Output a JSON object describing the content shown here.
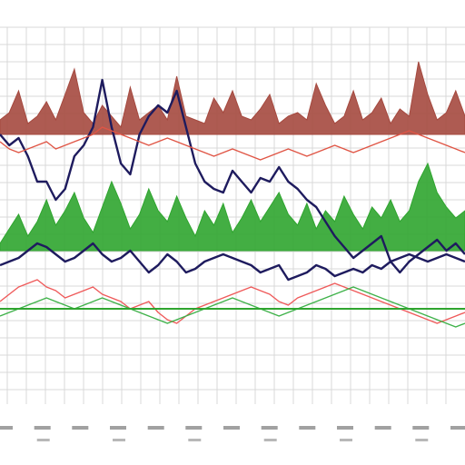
{
  "chart_data": {
    "type": "area",
    "title": "",
    "xlabel": "",
    "ylabel": "",
    "grid": true,
    "legend": "none",
    "x_tick_labels_legible": false,
    "x": [
      0,
      1,
      2,
      3,
      4,
      5,
      6,
      7,
      8,
      9,
      10,
      11,
      12,
      13,
      14,
      15,
      16,
      17,
      18,
      19,
      20,
      21,
      22,
      23,
      24,
      25,
      26,
      27,
      28,
      29,
      30,
      31,
      32,
      33,
      34,
      35,
      36,
      37,
      38,
      39,
      40,
      41,
      42,
      43,
      44,
      45,
      46,
      47,
      48,
      49,
      50
    ],
    "ylim": [
      0,
      100
    ],
    "series": [
      {
        "kind": "area",
        "color": "#a5493f",
        "values": [
          72,
          74,
          80,
          71,
          73,
          77,
          72,
          79,
          86,
          74,
          71,
          76,
          73,
          70,
          81,
          72,
          74,
          76,
          72,
          84,
          73,
          72,
          71,
          78,
          74,
          80,
          73,
          72,
          75,
          79,
          71,
          73,
          74,
          72,
          82,
          76,
          71,
          73,
          80,
          72,
          74,
          78,
          71,
          75,
          73,
          88,
          79,
          72,
          74,
          80,
          73
        ]
      },
      {
        "kind": "area",
        "color": "#2fa52f",
        "values": [
          38,
          42,
          46,
          40,
          44,
          50,
          43,
          47,
          52,
          45,
          41,
          48,
          55,
          49,
          42,
          46,
          53,
          47,
          44,
          51,
          45,
          40,
          47,
          43,
          49,
          41,
          45,
          50,
          44,
          48,
          52,
          46,
          43,
          49,
          42,
          47,
          44,
          51,
          46,
          42,
          48,
          45,
          50,
          44,
          47,
          55,
          60,
          52,
          48,
          45,
          47
        ]
      },
      {
        "kind": "line",
        "color": "#1e1b5e",
        "values": [
          68,
          65,
          67,
          62,
          55,
          55,
          50,
          53,
          62,
          65,
          70,
          83,
          70,
          60,
          57,
          68,
          73,
          76,
          74,
          80,
          70,
          60,
          55,
          53,
          52,
          58,
          55,
          52,
          56,
          55,
          59,
          55,
          53,
          50,
          48,
          44,
          40,
          37,
          34,
          36,
          38,
          40,
          33,
          30,
          33,
          35,
          37,
          39,
          36,
          38,
          35
        ]
      },
      {
        "kind": "line",
        "color": "#e05545",
        "values": [
          66,
          64,
          63,
          64,
          65,
          66,
          64,
          65,
          66,
          67,
          68,
          70,
          69,
          68,
          67,
          66,
          65,
          66,
          67,
          66,
          65,
          64,
          63,
          62,
          63,
          64,
          63,
          62,
          61,
          62,
          63,
          64,
          63,
          62,
          63,
          64,
          65,
          64,
          63,
          64,
          65,
          66,
          67,
          68,
          69,
          68,
          67,
          66,
          65,
          64,
          63
        ]
      },
      {
        "kind": "line",
        "color": "#1e1b5e",
        "values": [
          32,
          33,
          34,
          36,
          38,
          37,
          35,
          33,
          34,
          36,
          38,
          35,
          33,
          34,
          36,
          33,
          30,
          32,
          35,
          33,
          30,
          31,
          33,
          34,
          35,
          34,
          33,
          32,
          30,
          31,
          32,
          28,
          29,
          30,
          32,
          31,
          29,
          30,
          31,
          30,
          32,
          31,
          33,
          34,
          35,
          34,
          33,
          34,
          35,
          34,
          33
        ]
      },
      {
        "kind": "line",
        "color": "#ef5a5a",
        "values": [
          22,
          24,
          26,
          27,
          28,
          26,
          25,
          23,
          24,
          25,
          26,
          24,
          23,
          22,
          20,
          21,
          22,
          19,
          17,
          16,
          18,
          20,
          21,
          22,
          23,
          24,
          25,
          26,
          25,
          24,
          22,
          21,
          23,
          24,
          25,
          26,
          27,
          26,
          25,
          24,
          23,
          22,
          21,
          20,
          19,
          18,
          17,
          16,
          17,
          18,
          19
        ]
      },
      {
        "kind": "line",
        "color": "#3fb24a",
        "values": [
          18,
          19,
          20,
          21,
          22,
          23,
          22,
          21,
          20,
          21,
          22,
          23,
          22,
          21,
          20,
          19,
          18,
          17,
          16,
          17,
          18,
          19,
          20,
          21,
          22,
          23,
          22,
          21,
          20,
          19,
          18,
          19,
          20,
          21,
          22,
          23,
          24,
          25,
          26,
          25,
          24,
          23,
          22,
          21,
          20,
          19,
          18,
          17,
          16,
          15,
          16
        ]
      }
    ]
  }
}
